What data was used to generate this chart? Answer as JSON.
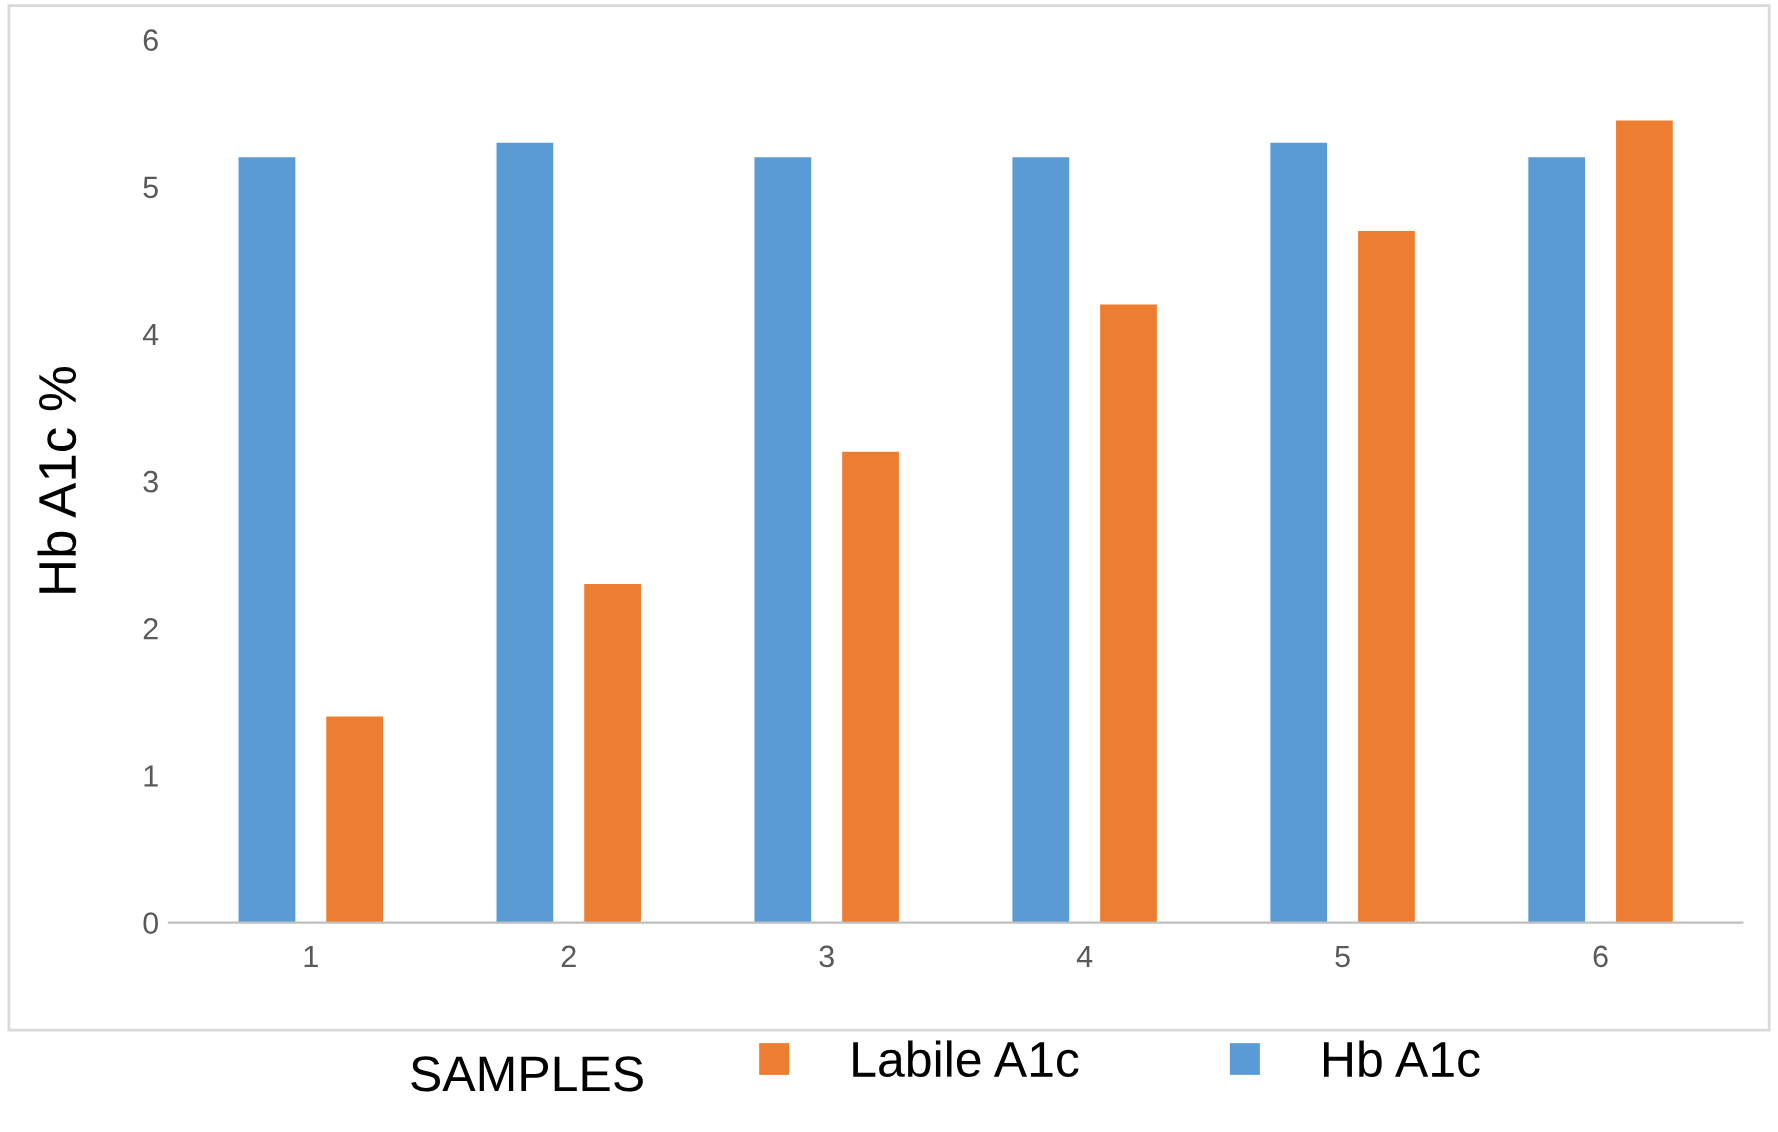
{
  "chart_data": {
    "type": "bar",
    "xlabel": "SAMPLES",
    "ylabel": "Hb A1c %",
    "categories": [
      "1",
      "2",
      "3",
      "4",
      "5",
      "6"
    ],
    "series": [
      {
        "name": "Hb A1c",
        "color": "#5b9bd5",
        "values": [
          5.2,
          5.3,
          5.2,
          5.2,
          5.3,
          5.2
        ]
      },
      {
        "name": "Labile A1c",
        "color": "#ed7d31",
        "values": [
          1.4,
          2.3,
          3.2,
          4.2,
          4.7,
          5.45
        ]
      }
    ],
    "ylim": [
      0,
      6
    ],
    "yticks": [
      0,
      1,
      2,
      3,
      4,
      5,
      6
    ],
    "grid": false,
    "legend": "bottom"
  }
}
